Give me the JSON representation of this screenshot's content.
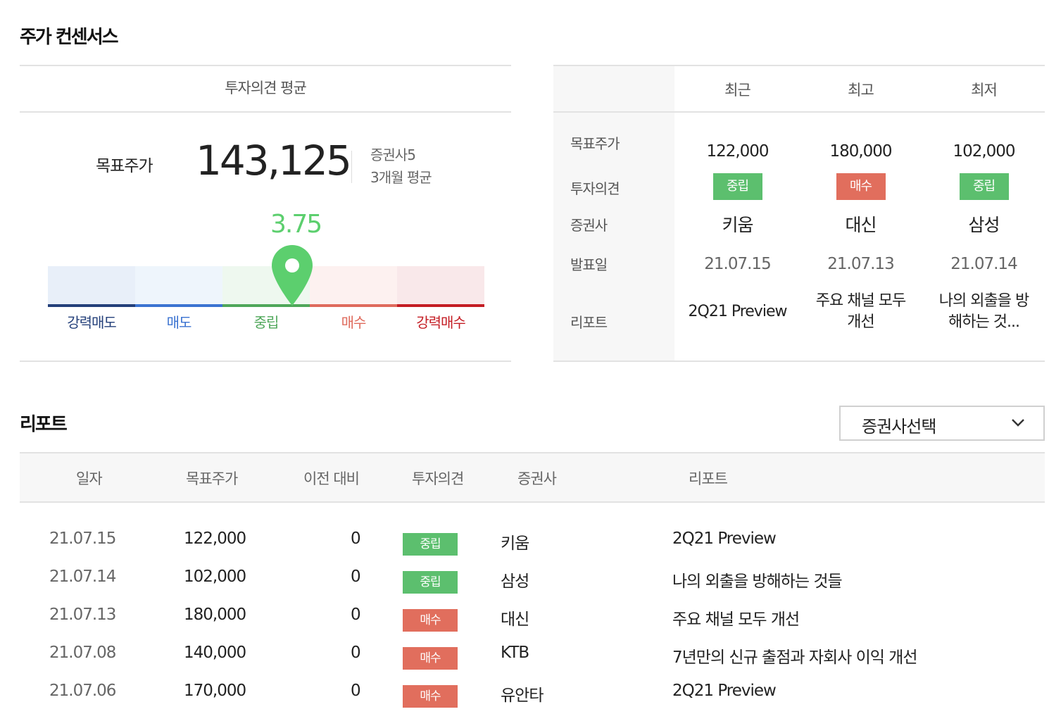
{
  "consensus": {
    "title": "주가 컨센서스",
    "avg_header": "투자의견 평균",
    "target_label": "목표주가",
    "target_value": "143,125",
    "brokers_count": "증권사5",
    "period": "3개월 평균",
    "score": "3.75",
    "score_value": 3.75,
    "scale": [
      {
        "label": "강력매도",
        "bar": "#e8eff9",
        "line": "#24407a",
        "text": "#24407a"
      },
      {
        "label": "매도",
        "bar": "#eef5fc",
        "line": "#3b73d1",
        "text": "#3b73d1"
      },
      {
        "label": "중립",
        "bar": "#eef8ef",
        "line": "#4fa75a",
        "text": "#4fa75a"
      },
      {
        "label": "매수",
        "bar": "#fdf1f0",
        "line": "#df6b5d",
        "text": "#df6b5d"
      },
      {
        "label": "강력매수",
        "bar": "#f9e8ea",
        "line": "#c41d24",
        "text": "#c41d24"
      }
    ],
    "pin_color": "#5ccf6e"
  },
  "summary": {
    "columns": [
      "최근",
      "최고",
      "최저"
    ],
    "row_labels": [
      "목표주가",
      "투자의견",
      "증권사",
      "발표일",
      "리포트"
    ],
    "cols": [
      {
        "price": "122,000",
        "opinion": "중립",
        "type": "neutral",
        "broker": "키움",
        "date": "21.07.15",
        "report1": "2Q21 Preview",
        "report2": ""
      },
      {
        "price": "180,000",
        "opinion": "매수",
        "type": "buy",
        "broker": "대신",
        "date": "21.07.13",
        "report1": "주요 채널 모두",
        "report2": "개선"
      },
      {
        "price": "102,000",
        "opinion": "중립",
        "type": "neutral",
        "broker": "삼성",
        "date": "21.07.14",
        "report1": "나의 외출을 방",
        "report2": "해하는 것..."
      }
    ]
  },
  "reports": {
    "title": "리포트",
    "select_label": "증권사선택",
    "headers": [
      "일자",
      "목표주가",
      "이전 대비",
      "투자의견",
      "증권사",
      "리포트"
    ],
    "rows": [
      {
        "date": "21.07.15",
        "price": "122,000",
        "change": "0",
        "opinion": "중립",
        "type": "neutral",
        "broker": "키움",
        "report": "2Q21 Preview"
      },
      {
        "date": "21.07.14",
        "price": "102,000",
        "change": "0",
        "opinion": "중립",
        "type": "neutral",
        "broker": "삼성",
        "report": "나의 외출을 방해하는 것들"
      },
      {
        "date": "21.07.13",
        "price": "180,000",
        "change": "0",
        "opinion": "매수",
        "type": "buy",
        "broker": "대신",
        "report": "주요 채널 모두 개선"
      },
      {
        "date": "21.07.08",
        "price": "140,000",
        "change": "0",
        "opinion": "매수",
        "type": "buy",
        "broker": "KTB",
        "report": "7년만의 신규 출점과 자회사 이익 개선"
      },
      {
        "date": "21.07.06",
        "price": "170,000",
        "change": "0",
        "opinion": "매수",
        "type": "buy",
        "broker": "유안타",
        "report": "2Q21 Preview"
      }
    ]
  }
}
